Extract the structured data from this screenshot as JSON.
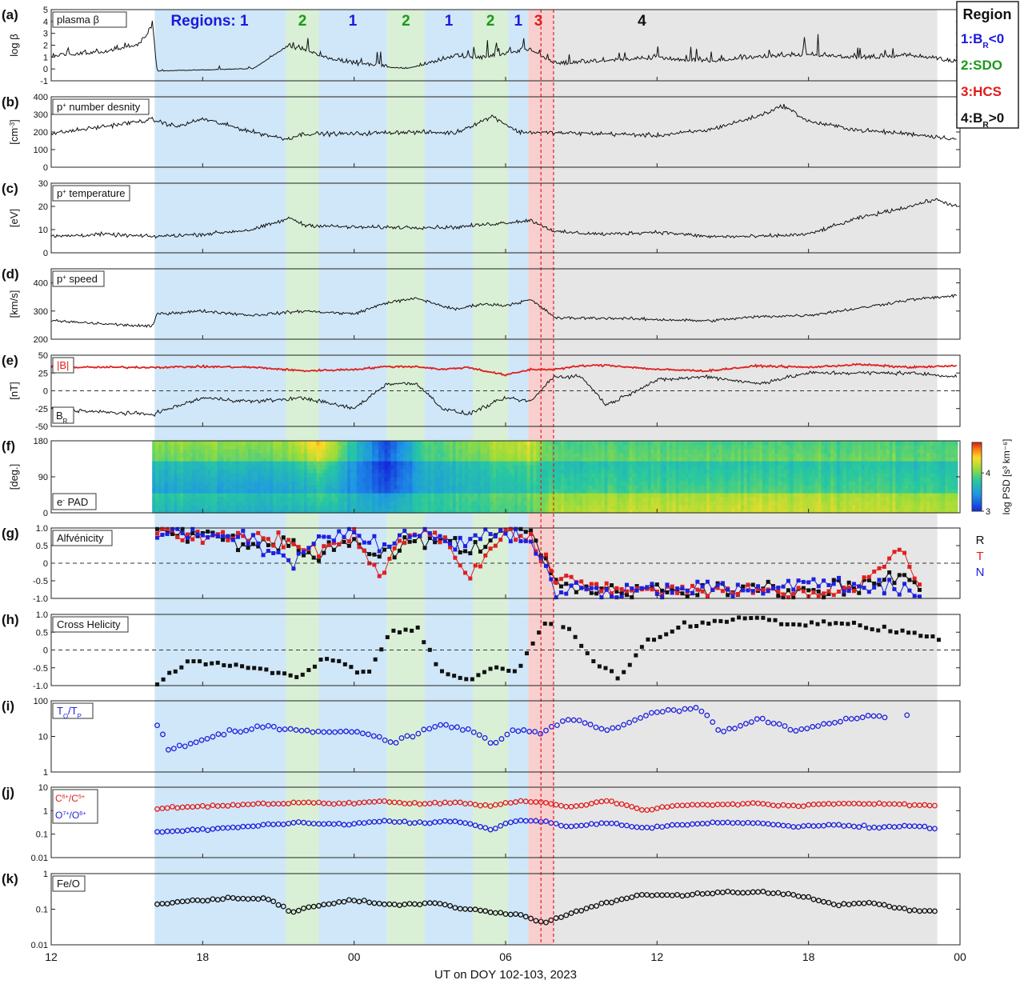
{
  "colors": {
    "region1": "#cfe7f8",
    "region2": "#d9f0d6",
    "region3": "#f8cfcf",
    "region4": "#e6e6e6",
    "label1": "#1a1adb",
    "label2": "#1a9a1a",
    "label3": "#e01a1a",
    "label4": "#111111",
    "red": "#e02020",
    "blue": "#2020e0",
    "black": "#111111"
  },
  "regions_header": {
    "prefix": "Regions: 1",
    "labels": [
      "2",
      "1",
      "2",
      "1",
      "2",
      "1",
      "3",
      "4"
    ]
  },
  "legend": {
    "title": "Region",
    "items": [
      {
        "num": "1:",
        "main": "B",
        "sub": "R",
        "rest": "<0",
        "color": "#1a1adb"
      },
      {
        "num": "2:",
        "main": "SDO",
        "sub": "",
        "rest": "",
        "color": "#1a9a1a"
      },
      {
        "num": "3:",
        "main": "HCS",
        "sub": "",
        "rest": "",
        "color": "#e01a1a"
      },
      {
        "num": "4:",
        "main": "B",
        "sub": "R",
        "rest": ">0",
        "color": "#111111"
      }
    ]
  },
  "xaxis": {
    "label": "UT on DOY 102-103, 2023",
    "ticks": [
      "12",
      "18",
      "00",
      "06",
      "12",
      "18",
      "00"
    ],
    "tick_hours": [
      12,
      18,
      24,
      30,
      36,
      42,
      48
    ],
    "range_hours": [
      12,
      48
    ]
  },
  "region_spans_hours": [
    {
      "region": 1,
      "start": 16.1,
      "end": 21.3
    },
    {
      "region": 2,
      "start": 21.3,
      "end": 22.6
    },
    {
      "region": 1,
      "start": 22.6,
      "end": 25.3
    },
    {
      "region": 2,
      "start": 25.3,
      "end": 26.8
    },
    {
      "region": 1,
      "start": 26.8,
      "end": 28.7
    },
    {
      "region": 2,
      "start": 28.7,
      "end": 30.1
    },
    {
      "region": 1,
      "start": 30.1,
      "end": 30.9
    },
    {
      "region": 3,
      "start": 30.9,
      "end": 31.9
    },
    {
      "region": 4,
      "start": 31.9,
      "end": 47.1
    }
  ],
  "hcs_dashed_hours": [
    31.4,
    31.9
  ],
  "colorbar": {
    "label": "log PSD [s³ km⁻⁶]",
    "ticks": [
      "3",
      "4"
    ],
    "range": [
      3,
      4.8
    ]
  },
  "panels": [
    {
      "id": "(a)",
      "title": "plasma β",
      "ylabel": "log β",
      "yticks": [
        "-1",
        "0",
        "1",
        "2",
        "3",
        "4",
        "5"
      ],
      "ylim": [
        -1,
        5
      ]
    },
    {
      "id": "(b)",
      "title_main": "p",
      "title_sup": "+",
      "title_rest": " number desnity",
      "ylabel_main": "[cm",
      "ylabel_sup": "-3",
      "ylabel_rest": "]",
      "yticks": [
        "0",
        "100",
        "200",
        "300",
        "400"
      ],
      "ylim": [
        0,
        400
      ]
    },
    {
      "id": "(c)",
      "title_main": "p",
      "title_sup": "+",
      "title_rest": " temperature",
      "ylabel": "[eV]",
      "yticks": [
        "0",
        "10",
        "20",
        "30"
      ],
      "ylim": [
        0,
        30
      ]
    },
    {
      "id": "(d)",
      "title_main": "p",
      "title_sup": "+",
      "title_rest": " speed",
      "ylabel": "[km/s]",
      "yticks": [
        "200",
        "300",
        "400"
      ],
      "ylim": [
        200,
        450
      ]
    },
    {
      "id": "(e)",
      "label_top": "|B|",
      "label_bottom_main": "B",
      "label_bottom_sub": "R",
      "ylabel": "[nT]",
      "yticks": [
        "-50",
        "-25",
        "0",
        "25",
        "50"
      ],
      "ylim": [
        -50,
        50
      ]
    },
    {
      "id": "(f)",
      "title_main": "e",
      "title_sup": "-",
      "title_rest": " PAD",
      "ylabel": "[deg.]",
      "yticks": [
        "0",
        "90",
        "180"
      ],
      "ylim": [
        0,
        180
      ]
    },
    {
      "id": "(g)",
      "title": "Alfvénicity",
      "yticks": [
        "-1.0",
        "-0.5",
        "0",
        "0.5",
        "1.0"
      ],
      "ylim": [
        -1,
        1
      ],
      "comp_labels": [
        "R",
        "T",
        "N"
      ]
    },
    {
      "id": "(h)",
      "title": "Cross Helicity",
      "yticks": [
        "-1.0",
        "-0.5",
        "0",
        "0.5",
        "1.0"
      ],
      "ylim": [
        -1,
        1
      ]
    },
    {
      "id": "(i)",
      "title_main": "T",
      "title_sub1": "O",
      "title_mid": "/T",
      "title_sub2": "P",
      "yticks": [
        "1",
        "10",
        "100"
      ],
      "ylim": [
        1,
        100
      ]
    },
    {
      "id": "(j)",
      "label1_main": "C",
      "label1_sup1": "6+",
      "label1_mid": "/C",
      "label1_sup2": "5+",
      "label2_main": "O",
      "label2_sup1": "7+",
      "label2_mid": "/O",
      "label2_sup2": "6+",
      "yticks": [
        "0.01",
        "0.1",
        "1",
        "10"
      ],
      "ylim": [
        0.01,
        10
      ]
    },
    {
      "id": "(k)",
      "title": "Fe/O",
      "yticks": [
        "0.01",
        "0.1",
        "1"
      ],
      "ylim": [
        0.01,
        1
      ]
    }
  ],
  "chart_data": [
    {
      "type": "line",
      "panel": "(a)",
      "title": "plasma β",
      "ylabel": "log β",
      "ylim": [
        -1,
        5
      ],
      "x_hours": [
        12,
        14,
        15.5,
        16.0,
        16.2,
        18,
        20,
        21.3,
        22,
        23,
        24,
        25,
        26,
        27,
        28,
        29,
        30,
        31,
        32,
        34,
        36,
        38,
        40,
        42,
        44,
        46,
        47.9
      ],
      "series": [
        {
          "values": [
            1.0,
            1.3,
            1.9,
            3.5,
            -0.2,
            -0.1,
            0.0,
            1.8,
            1.5,
            0.8,
            0.3,
            0.2,
            0.0,
            0.4,
            1.0,
            0.8,
            1.2,
            1.5,
            0.3,
            0.6,
            0.8,
            0.5,
            0.9,
            1.1,
            0.8,
            1.0,
            0.5
          ]
        }
      ]
    },
    {
      "type": "line",
      "panel": "(b)",
      "ylim": [
        0,
        400
      ],
      "x_hours": [
        12,
        14,
        16,
        17,
        18,
        20,
        21.3,
        22,
        24,
        26,
        28,
        29.5,
        30.5,
        32,
        34,
        36,
        38,
        40,
        41,
        42,
        44,
        46,
        47.9
      ],
      "series": [
        {
          "values": [
            190,
            230,
            270,
            230,
            275,
            200,
            160,
            190,
            190,
            200,
            195,
            290,
            200,
            195,
            190,
            180,
            210,
            290,
            350,
            260,
            210,
            190,
            160
          ]
        }
      ]
    },
    {
      "type": "line",
      "panel": "(c)",
      "ylim": [
        0,
        30
      ],
      "x_hours": [
        12,
        14,
        16,
        18,
        20,
        21.5,
        22,
        24,
        26,
        28,
        30,
        31,
        32,
        34,
        36,
        38,
        40,
        42,
        44,
        46,
        47,
        47.9
      ],
      "series": [
        {
          "values": [
            7,
            8,
            7,
            8,
            10,
            15,
            12,
            11,
            11,
            11,
            13,
            14,
            9,
            8,
            9,
            7,
            7,
            8,
            15,
            20,
            23,
            20
          ]
        }
      ]
    },
    {
      "type": "line",
      "panel": "(d)",
      "ylim": [
        200,
        450
      ],
      "x_hours": [
        12,
        14,
        16,
        16.2,
        18,
        20,
        22,
        24,
        25.3,
        26.5,
        28,
        29,
        30,
        31,
        32,
        34,
        36,
        38,
        40,
        42,
        44,
        46,
        47.9
      ],
      "series": [
        {
          "values": [
            265,
            255,
            245,
            290,
            300,
            285,
            300,
            290,
            330,
            345,
            305,
            325,
            320,
            340,
            275,
            275,
            270,
            265,
            280,
            285,
            310,
            340,
            355
          ]
        }
      ]
    },
    {
      "type": "line",
      "panel": "(e)",
      "ylim": [
        -50,
        50
      ],
      "x_hours": [
        12,
        14,
        16,
        18,
        20,
        22,
        24,
        25.3,
        26.5,
        27.5,
        28.5,
        30,
        31,
        31.9,
        33,
        34,
        36,
        38,
        40,
        42,
        44,
        46,
        47.9
      ],
      "series": [
        {
          "name": "|B|",
          "values": [
            33,
            33,
            33,
            34,
            33,
            28,
            30,
            34,
            34,
            30,
            33,
            22,
            30,
            30,
            35,
            36,
            30,
            28,
            35,
            33,
            37,
            33,
            35
          ]
        },
        {
          "name": "B_R",
          "values": [
            -25,
            -30,
            -33,
            -10,
            -15,
            -10,
            -25,
            10,
            10,
            -25,
            -33,
            -10,
            -15,
            20,
            20,
            -20,
            15,
            20,
            10,
            25,
            25,
            25,
            20
          ]
        }
      ]
    },
    {
      "type": "heatmap",
      "panel": "(f)",
      "ylabel": "[deg.]",
      "ylim": [
        0,
        180
      ],
      "colorbar_range": [
        3,
        4.8
      ],
      "x_hours": [
        16.0,
        21.3,
        22.6,
        25.3,
        26.8,
        30.9,
        31.9,
        40,
        47.9
      ],
      "psd_low_pa": [
        3.7,
        3.6,
        3.7,
        3.6,
        3.8,
        3.9,
        4.2,
        4.3,
        4.2
      ],
      "psd_high_pa": [
        4.1,
        4.1,
        4.5,
        3.1,
        3.9,
        4.3,
        3.9,
        3.9,
        3.9
      ]
    },
    {
      "type": "scatter",
      "panel": "(g)",
      "title": "Alfvénicity",
      "ylim": [
        -1,
        1
      ],
      "x_hours": [
        16.2,
        18,
        20,
        21.5,
        22.5,
        24,
        25,
        26,
        27.5,
        28.5,
        30,
        31,
        32,
        34,
        36,
        38,
        40,
        42,
        44,
        45.5,
        46.5
      ],
      "series": [
        {
          "name": "R",
          "values": [
            0.9,
            0.8,
            0.6,
            0.5,
            0.2,
            0.7,
            0.2,
            0.6,
            0.8,
            0.2,
            0.9,
            0.9,
            -0.6,
            -0.8,
            -0.8,
            -0.8,
            -0.7,
            -0.8,
            -0.6,
            -0.4,
            -0.7
          ]
        },
        {
          "name": "T",
          "values": [
            0.9,
            0.7,
            0.8,
            0.6,
            0.4,
            0.8,
            -0.3,
            0.7,
            0.8,
            -0.4,
            0.8,
            0.8,
            -0.5,
            -0.7,
            -0.8,
            -0.8,
            -0.8,
            -0.8,
            -0.7,
            0.4,
            -0.6
          ]
        },
        {
          "name": "N",
          "values": [
            0.9,
            0.9,
            0.7,
            0.0,
            0.7,
            0.9,
            0.5,
            0.8,
            0.7,
            0.6,
            0.9,
            0.7,
            -0.7,
            -0.8,
            -0.8,
            -0.7,
            -0.8,
            -0.5,
            -0.8,
            -0.6,
            -0.8
          ]
        }
      ]
    },
    {
      "type": "scatter",
      "panel": "(h)",
      "title": "Cross Helicity",
      "ylim": [
        -1,
        1
      ],
      "x_hours": [
        16.2,
        17.5,
        19,
        20.5,
        21.8,
        23,
        24.5,
        25.5,
        26.5,
        27.5,
        28.5,
        29.5,
        30.5,
        31.5,
        32.5,
        33.5,
        34.5,
        35.5,
        37,
        38.5,
        40,
        41.5,
        43,
        44.5,
        46,
        47.3
      ],
      "series": [
        {
          "values": [
            -0.95,
            -0.3,
            -0.4,
            -0.6,
            -0.75,
            -0.2,
            -0.7,
            0.5,
            0.6,
            -0.7,
            -0.8,
            -0.5,
            -0.6,
            0.8,
            0.6,
            -0.3,
            -0.8,
            0.2,
            0.7,
            0.8,
            0.9,
            0.7,
            0.8,
            0.6,
            0.5,
            0.3
          ]
        }
      ]
    },
    {
      "type": "scatter",
      "panel": "(i)",
      "ylim": [
        1,
        100
      ],
      "yscale": "log",
      "x_hours": [
        16.2,
        16.6,
        17.5,
        18.5,
        19.5,
        20.5,
        21.5,
        22.5,
        23.5,
        24.5,
        25.5,
        26.5,
        27.5,
        28.5,
        29.5,
        30.5,
        31.5,
        32.5,
        34,
        35,
        36,
        37.5,
        38.5,
        40,
        41.5,
        43,
        44.5,
        46
      ],
      "series": [
        {
          "values": [
            20,
            4,
            6,
            10,
            15,
            20,
            15,
            13,
            14,
            12,
            6,
            12,
            22,
            15,
            6,
            15,
            12,
            30,
            15,
            25,
            50,
            60,
            12,
            30,
            14,
            25,
            40,
            35
          ]
        }
      ]
    },
    {
      "type": "scatter",
      "panel": "(j)",
      "ylim": [
        0.01,
        10
      ],
      "yscale": "log",
      "x_hours": [
        16.2,
        17.5,
        19,
        20.5,
        22,
        23.5,
        25,
        26.5,
        28,
        29.5,
        30.5,
        31.5,
        32.5,
        34,
        35.5,
        37,
        38.5,
        40,
        41.5,
        43,
        44.5,
        46,
        47.1
      ],
      "series": [
        {
          "name": "C6+/C5+",
          "values": [
            1.2,
            1.5,
            1.6,
            2.0,
            2.2,
            2.0,
            2.5,
            2.0,
            2.2,
            1.6,
            2.5,
            2.2,
            1.4,
            2.5,
            1.0,
            1.8,
            1.8,
            2.0,
            1.5,
            2.0,
            2.0,
            1.8,
            1.7
          ]
        },
        {
          "name": "O7+/O6+",
          "values": [
            0.12,
            0.15,
            0.18,
            0.25,
            0.3,
            0.25,
            0.35,
            0.3,
            0.35,
            0.15,
            0.4,
            0.35,
            0.2,
            0.3,
            0.18,
            0.25,
            0.3,
            0.3,
            0.2,
            0.25,
            0.2,
            0.22,
            0.18
          ]
        }
      ]
    },
    {
      "type": "scatter",
      "panel": "(k)",
      "title": "Fe/O",
      "ylim": [
        0.01,
        1
      ],
      "yscale": "log",
      "x_hours": [
        16.2,
        17.5,
        19,
        20.5,
        21.5,
        22.5,
        24,
        25.5,
        27,
        28.5,
        29.5,
        30.5,
        31.5,
        32.5,
        34,
        35.5,
        37,
        38.5,
        40,
        41.5,
        43,
        44.5,
        46,
        47.1
      ],
      "series": [
        {
          "values": [
            0.14,
            0.17,
            0.2,
            0.2,
            0.08,
            0.12,
            0.18,
            0.13,
            0.15,
            0.1,
            0.08,
            0.07,
            0.04,
            0.07,
            0.15,
            0.25,
            0.25,
            0.3,
            0.3,
            0.25,
            0.13,
            0.15,
            0.09,
            0.09
          ]
        }
      ]
    }
  ]
}
